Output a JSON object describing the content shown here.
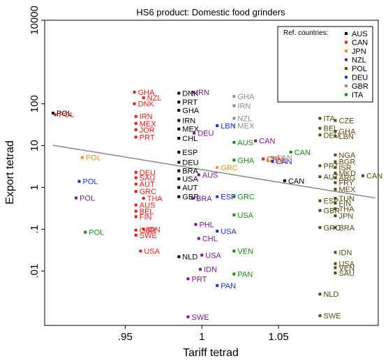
{
  "chart_data": {
    "type": "scatter",
    "title": "HS6 product:  Domestic food grinders",
    "xlabel": "Tariff tetrad",
    "ylabel": "Export tetrad",
    "x_scale": "linear",
    "y_scale": "log",
    "xlim": [
      0.8975,
      1.115
    ],
    "ylim": [
      0.0005,
      10000
    ],
    "x_ticks": [
      0.95,
      1.0,
      1.05
    ],
    "x_tick_labels": [
      ".95",
      "1",
      "1.05"
    ],
    "y_ticks": [
      0.01,
      0.1,
      1,
      10,
      100,
      10000
    ],
    "y_tick_labels": [
      ".01",
      ".1",
      "1",
      "10",
      "100",
      "10000"
    ],
    "grid": false,
    "legend": {
      "title": "Ref. countries:",
      "position": "top-right",
      "entries": [
        {
          "name": "AUS",
          "color": "#000000"
        },
        {
          "name": "CAN",
          "color": "#ee1c1c"
        },
        {
          "name": "JPN",
          "color": "#f28c28"
        },
        {
          "name": "NZL",
          "color": "#7a1a8e"
        },
        {
          "name": "POL",
          "color": "#5a4a12"
        },
        {
          "name": "DEU",
          "color": "#1a2fe8"
        },
        {
          "name": "GBR",
          "color": "#8e8e8e"
        },
        {
          "name": "ITA",
          "color": "#1a8a1a"
        }
      ]
    },
    "fit_line": {
      "x": [
        0.903,
        1.113
      ],
      "y": [
        10.2,
        0.56
      ],
      "color": "#8e8e8e"
    },
    "series": [
      {
        "name": "AUS",
        "color": "#000000",
        "points": [
          {
            "x": 0.903,
            "y": 60,
            "label": "POL"
          },
          {
            "x": 0.985,
            "y": 180,
            "label": "DNK"
          },
          {
            "x": 0.985,
            "y": 110,
            "label": "PRT"
          },
          {
            "x": 0.985,
            "y": 70,
            "label": "GHA"
          },
          {
            "x": 0.985,
            "y": 40,
            "label": "IRN"
          },
          {
            "x": 0.985,
            "y": 25,
            "label": "MEX"
          },
          {
            "x": 0.985,
            "y": 15,
            "label": "CHL"
          },
          {
            "x": 0.985,
            "y": 7,
            "label": "ESP"
          },
          {
            "x": 0.985,
            "y": 4,
            "label": "DEU"
          },
          {
            "x": 0.985,
            "y": 2.5,
            "label": "BRA"
          },
          {
            "x": 0.985,
            "y": 1.6,
            "label": "USA"
          },
          {
            "x": 0.985,
            "y": 1.0,
            "label": "AUT"
          },
          {
            "x": 0.985,
            "y": 0.6,
            "label": "GBR"
          },
          {
            "x": 0.985,
            "y": 0.022,
            "label": "NLD"
          },
          {
            "x": 1.054,
            "y": 1.45,
            "label": "CAN"
          }
        ]
      },
      {
        "name": "CAN",
        "color": "#ee1c1c",
        "points": [
          {
            "x": 0.9045,
            "y": 55,
            "label": "POL"
          },
          {
            "x": 0.956,
            "y": 190,
            "label": "GHA"
          },
          {
            "x": 0.956,
            "y": 100,
            "label": "DNK"
          },
          {
            "x": 0.962,
            "y": 140,
            "label": "NZL"
          },
          {
            "x": 0.957,
            "y": 50,
            "label": "IRN"
          },
          {
            "x": 0.957,
            "y": 34,
            "label": "MEX"
          },
          {
            "x": 0.957,
            "y": 24,
            "label": "JOR"
          },
          {
            "x": 0.957,
            "y": 16,
            "label": "PRT"
          },
          {
            "x": 0.957,
            "y": 2.3,
            "label": "DEU"
          },
          {
            "x": 0.957,
            "y": 1.7,
            "label": "SAU"
          },
          {
            "x": 0.957,
            "y": 1.2,
            "label": "AUT"
          },
          {
            "x": 0.957,
            "y": 0.8,
            "label": "GRC"
          },
          {
            "x": 0.962,
            "y": 0.55,
            "label": "THA"
          },
          {
            "x": 0.957,
            "y": 0.38,
            "label": "AUS"
          },
          {
            "x": 0.957,
            "y": 0.27,
            "label": "BEL"
          },
          {
            "x": 0.957,
            "y": 0.2,
            "label": "FIN"
          },
          {
            "x": 0.957,
            "y": 0.095,
            "label": "GBR"
          },
          {
            "x": 0.957,
            "y": 0.072,
            "label": "SWE"
          },
          {
            "x": 0.962,
            "y": 0.1,
            "label": "IDN"
          },
          {
            "x": 0.96,
            "y": 0.03,
            "label": "USA"
          },
          {
            "x": 1.04,
            "y": 4.8,
            "label": "CAN"
          }
        ]
      },
      {
        "name": "JPN",
        "color": "#f28c28",
        "points": [
          {
            "x": 0.922,
            "y": 5.2,
            "label": "POL"
          },
          {
            "x": 1.043,
            "y": 4.4,
            "label": "CAN"
          },
          {
            "x": 1.01,
            "y": 3.0,
            "label": "GRC"
          }
        ]
      },
      {
        "name": "NZL",
        "color": "#7a1a8e",
        "points": [
          {
            "x": 0.918,
            "y": 0.56,
            "label": "POL"
          },
          {
            "x": 0.994,
            "y": 190,
            "label": "IRN"
          },
          {
            "x": 0.995,
            "y": 20,
            "label": "DEU"
          },
          {
            "x": 0.998,
            "y": 2.0,
            "label": "AUS"
          },
          {
            "x": 0.994,
            "y": 0.55,
            "label": "BRA"
          },
          {
            "x": 0.996,
            "y": 0.13,
            "label": "PHL"
          },
          {
            "x": 0.998,
            "y": 0.06,
            "label": "CHL"
          },
          {
            "x": 1.0,
            "y": 0.024,
            "label": "USA"
          },
          {
            "x": 0.999,
            "y": 0.011,
            "label": "IDN"
          },
          {
            "x": 0.991,
            "y": 0.0065,
            "label": "PRT"
          },
          {
            "x": 0.991,
            "y": 0.0008,
            "label": "SWE"
          },
          {
            "x": 1.035,
            "y": 13,
            "label": "CAN"
          }
        ]
      },
      {
        "name": "POL",
        "color": "#5a4a12",
        "points": [
          {
            "x": 1.077,
            "y": 45,
            "label": "ITA"
          },
          {
            "x": 1.077,
            "y": 26,
            "label": "BEL"
          },
          {
            "x": 1.077,
            "y": 18,
            "label": "DEU"
          },
          {
            "x": 1.077,
            "y": 3.3,
            "label": "PRT"
          },
          {
            "x": 1.077,
            "y": 1.8,
            "label": "AUT"
          },
          {
            "x": 1.077,
            "y": 0.48,
            "label": "ESP"
          },
          {
            "x": 1.077,
            "y": 0.28,
            "label": "GBR"
          },
          {
            "x": 1.077,
            "y": 0.11,
            "label": "GRC"
          },
          {
            "x": 1.077,
            "y": 0.0028,
            "label": "NLD"
          },
          {
            "x": 1.077,
            "y": 0.00085,
            "label": "SWE"
          },
          {
            "x": 1.087,
            "y": 40,
            "label": "CZE"
          },
          {
            "x": 1.087,
            "y": 22,
            "label": "GHA"
          },
          {
            "x": 1.087,
            "y": 17,
            "label": "LBN"
          },
          {
            "x": 1.087,
            "y": 6.0,
            "label": "NGA"
          },
          {
            "x": 1.087,
            "y": 4.1,
            "label": "BGR"
          },
          {
            "x": 1.087,
            "y": 3.0,
            "label": "ISR"
          },
          {
            "x": 1.087,
            "y": 2.2,
            "label": "MKD"
          },
          {
            "x": 1.087,
            "y": 1.7,
            "label": "ARG"
          },
          {
            "x": 1.087,
            "y": 1.3,
            "label": "FRY"
          },
          {
            "x": 1.087,
            "y": 0.9,
            "label": "MEX"
          },
          {
            "x": 1.087,
            "y": 0.55,
            "label": "TUN"
          },
          {
            "x": 1.087,
            "y": 0.42,
            "label": "FIN"
          },
          {
            "x": 1.087,
            "y": 0.31,
            "label": "THA"
          },
          {
            "x": 1.087,
            "y": 0.21,
            "label": "JPN"
          },
          {
            "x": 1.087,
            "y": 0.11,
            "label": "BRA"
          },
          {
            "x": 1.087,
            "y": 0.028,
            "label": "IDN"
          },
          {
            "x": 1.087,
            "y": 0.015,
            "label": "USA"
          },
          {
            "x": 1.087,
            "y": 0.012,
            "label": "VEN"
          },
          {
            "x": 1.087,
            "y": 0.009,
            "label": "SAU"
          },
          {
            "x": 1.105,
            "y": 1.9,
            "label": "CAN"
          }
        ]
      },
      {
        "name": "DEU",
        "color": "#1a2fe8",
        "points": [
          {
            "x": 0.92,
            "y": 1.4,
            "label": "POL"
          },
          {
            "x": 1.046,
            "y": 4.2,
            "label": "CAN"
          },
          {
            "x": 1.01,
            "y": 30,
            "label": "LBN"
          },
          {
            "x": 1.01,
            "y": 0.6,
            "label": "ESP"
          },
          {
            "x": 1.01,
            "y": 0.09,
            "label": "USA"
          },
          {
            "x": 1.01,
            "y": 0.0045,
            "label": "PAN"
          }
        ]
      },
      {
        "name": "GBR",
        "color": "#8e8e8e",
        "points": [
          {
            "x": 1.021,
            "y": 150,
            "label": "GHA"
          },
          {
            "x": 1.021,
            "y": 90,
            "label": "IRN"
          },
          {
            "x": 1.021,
            "y": 45,
            "label": "NZL"
          },
          {
            "x": 1.021,
            "y": 30,
            "label": "MEX"
          },
          {
            "x": 1.046,
            "y": 5.2,
            "label": "CAN"
          }
        ]
      },
      {
        "name": "ITA",
        "color": "#1a8a1a",
        "points": [
          {
            "x": 0.924,
            "y": 0.085,
            "label": "POL"
          },
          {
            "x": 1.058,
            "y": 7.0,
            "label": "CAN"
          },
          {
            "x": 1.021,
            "y": 12,
            "label": "AUS"
          },
          {
            "x": 1.021,
            "y": 4.5,
            "label": "GHA"
          },
          {
            "x": 1.021,
            "y": 0.6,
            "label": "GRC"
          },
          {
            "x": 1.021,
            "y": 0.22,
            "label": "USA"
          },
          {
            "x": 1.021,
            "y": 0.03,
            "label": "VEN"
          },
          {
            "x": 1.021,
            "y": 0.0085,
            "label": "PAN"
          }
        ]
      }
    ]
  }
}
